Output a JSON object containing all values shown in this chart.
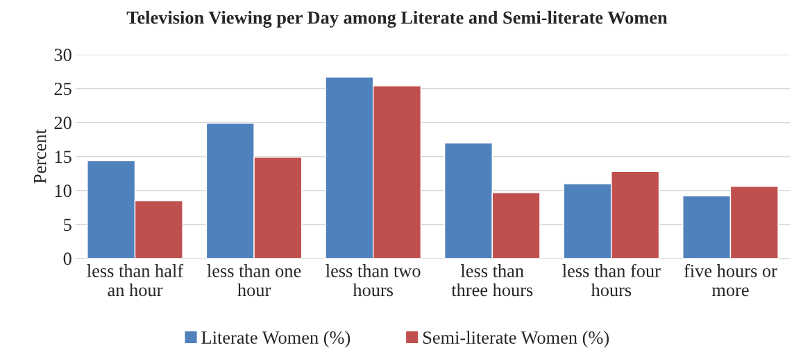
{
  "chart_data": {
    "type": "bar",
    "title": "Television Viewing per Day among Literate and Semi-literate Women",
    "ylabel": "Percent",
    "categories": [
      "less than half an hour",
      "less than one hour",
      "less than two hours",
      "less than three hours",
      "less than four hours",
      "five hours or more"
    ],
    "series": [
      {
        "name": "Literate Women (%)",
        "color": "#4f81bd",
        "values": [
          14.4,
          19.9,
          26.7,
          17.0,
          11.0,
          9.2
        ]
      },
      {
        "name": "Semi-literate Women (%)",
        "color": "#c0504d",
        "values": [
          8.5,
          14.9,
          25.4,
          9.7,
          12.8,
          10.6
        ]
      }
    ],
    "ylim": [
      0,
      30
    ],
    "yticks": [
      0,
      5,
      10,
      15,
      20,
      25,
      30
    ],
    "grid": "y",
    "legend": "bottom"
  }
}
